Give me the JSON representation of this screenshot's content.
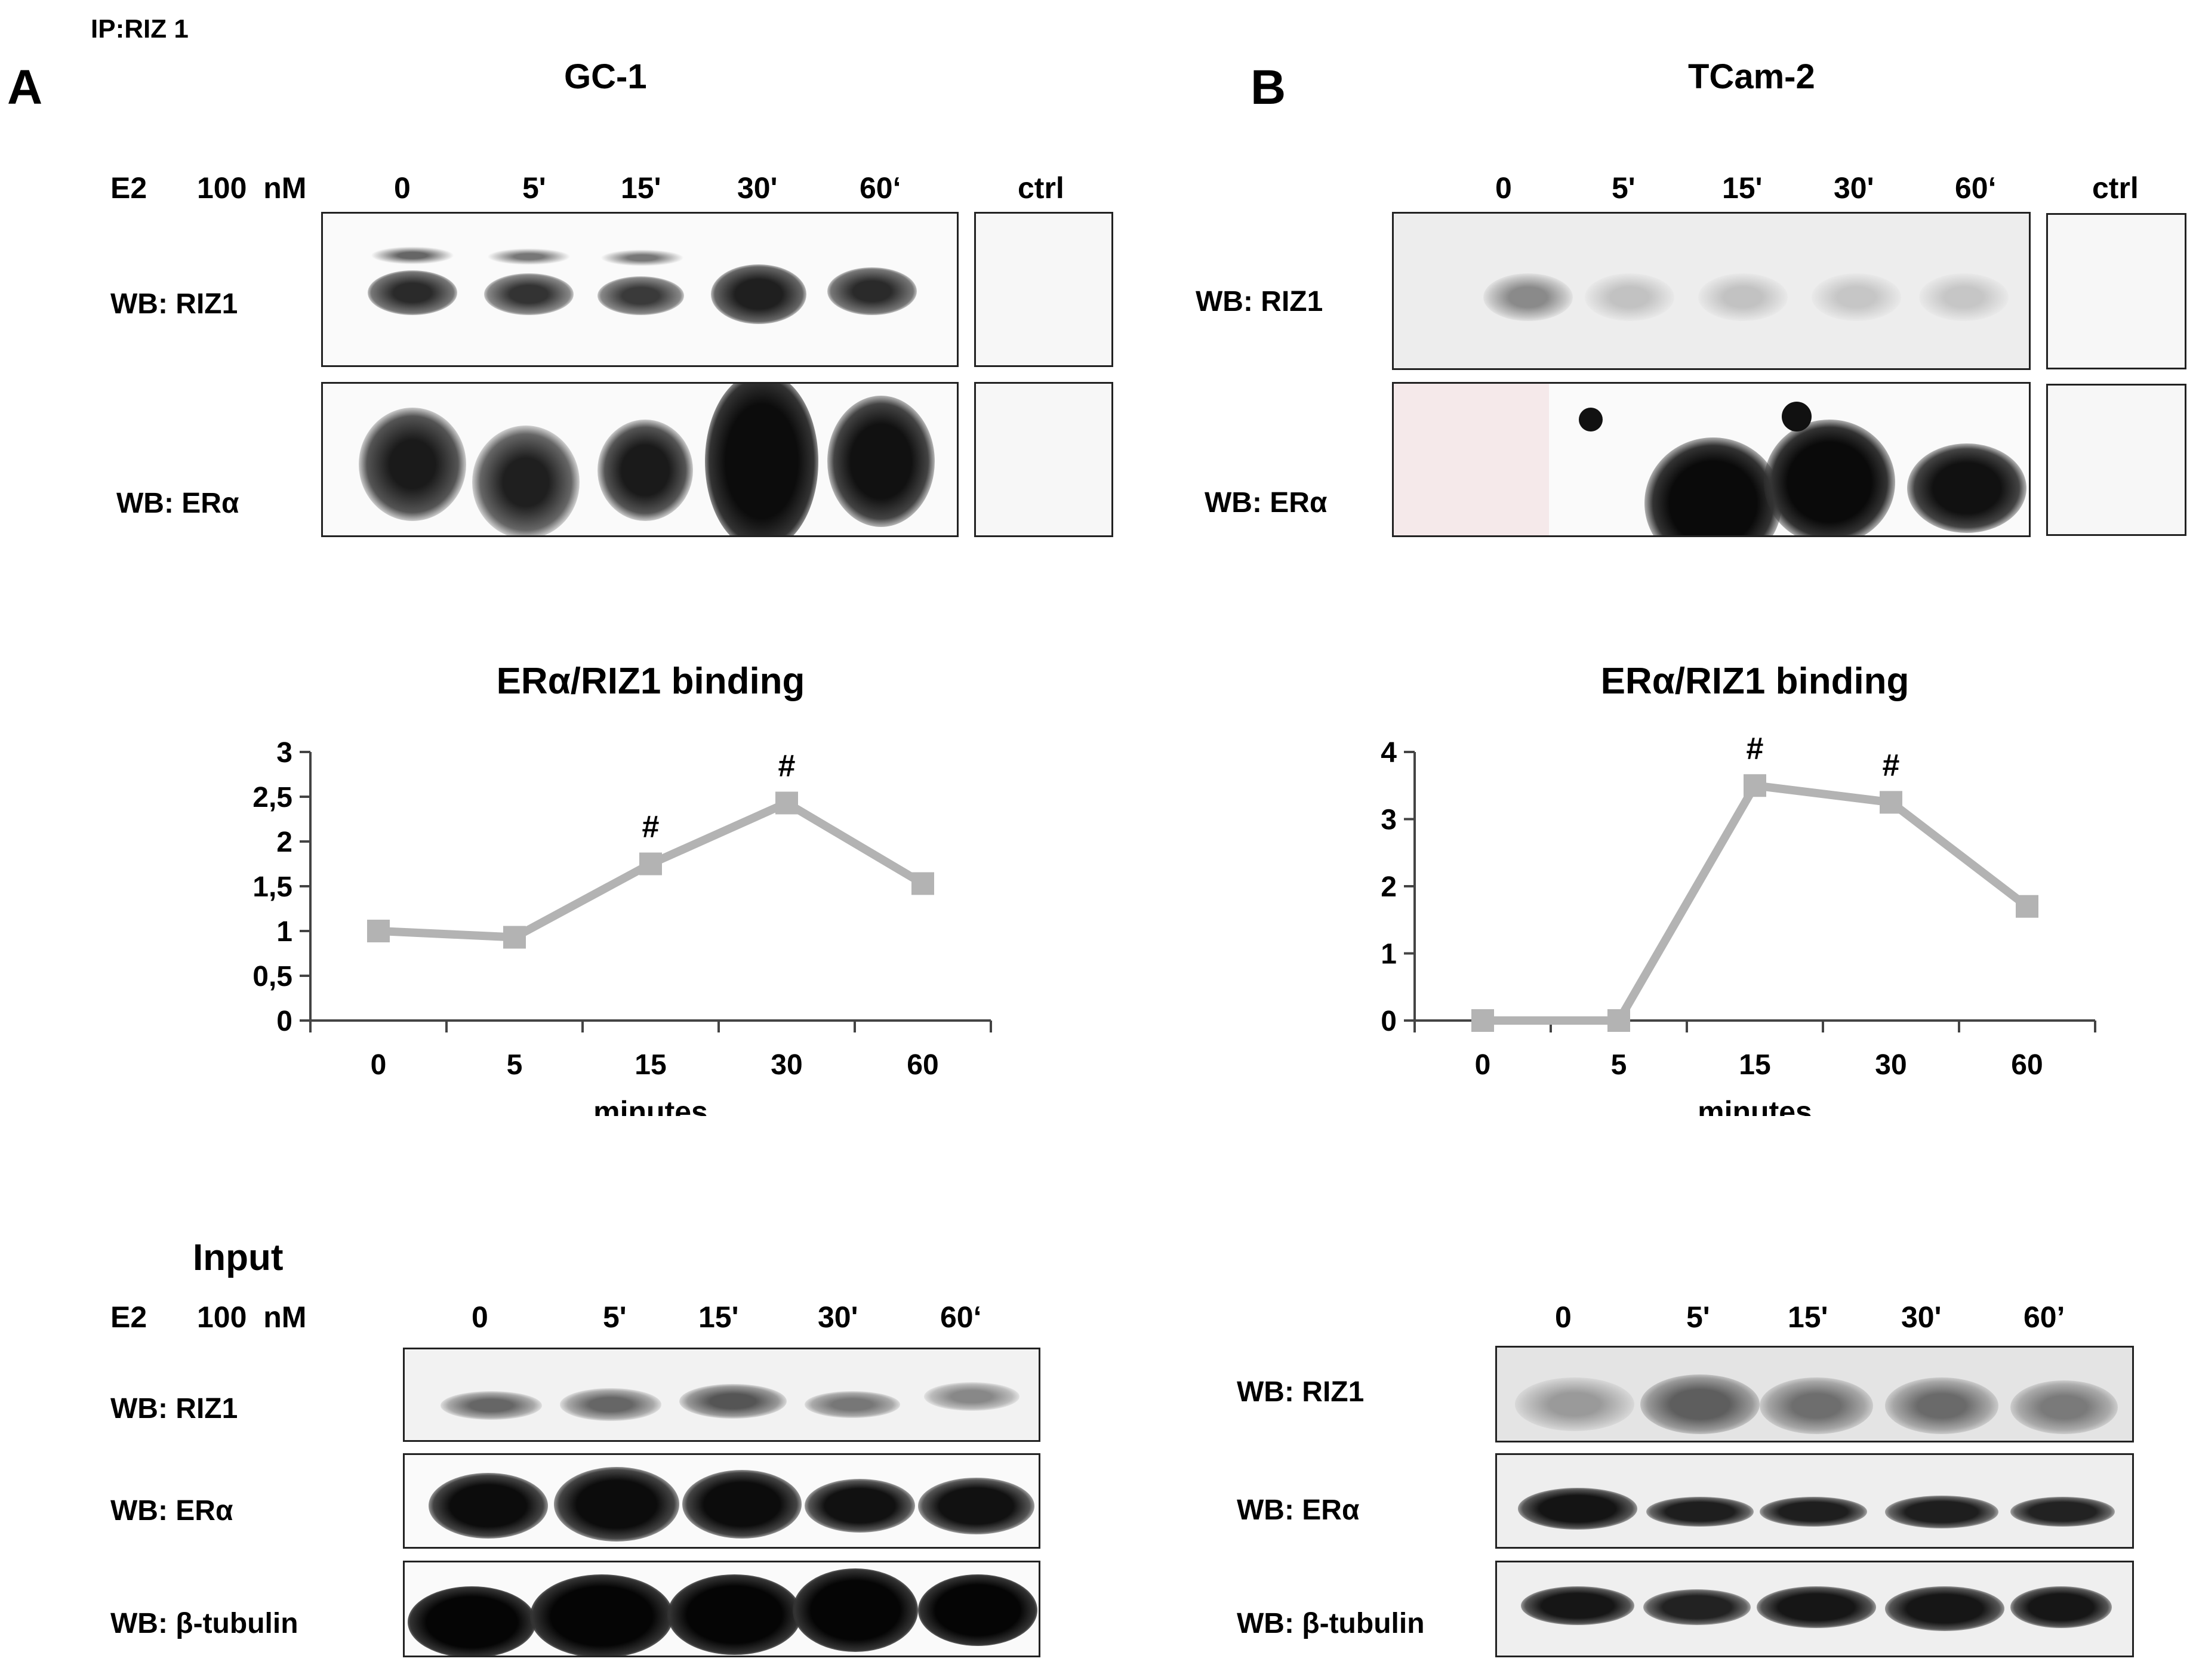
{
  "ip_label": "IP:RIZ 1",
  "panel_a": {
    "letter": "A",
    "cell_line": "GC-1",
    "treatment": "E2",
    "dose": "100  nM",
    "lanes": [
      "0",
      "5'",
      "15'",
      "30'",
      "60‘"
    ],
    "ctrl": "ctrl",
    "rows": [
      "WB: RIZ1",
      "WB: ERα"
    ],
    "input_title": "Input",
    "input_lanes": [
      "0",
      "5'",
      "15'",
      "30'",
      "60‘"
    ],
    "input_rows": [
      "WB: RIZ1",
      "WB: ERα",
      "WB: β-tubulin"
    ]
  },
  "panel_b": {
    "letter": "B",
    "cell_line": "TCam-2",
    "lanes": [
      "0",
      "5'",
      "15'",
      "30'",
      "60‘"
    ],
    "ctrl": "ctrl",
    "rows": [
      "WB: RIZ1",
      "WB: ERα"
    ],
    "input_lanes": [
      "0",
      "5'",
      "15'",
      "30'",
      "60’"
    ],
    "input_rows": [
      "WB: RIZ1",
      "WB: ERα",
      "WB: β-tubulin"
    ]
  },
  "chart_data": [
    {
      "type": "line",
      "title": "ERα/RIZ1 binding",
      "xlabel": "minutes",
      "ylabel": "",
      "categories": [
        "0",
        "5",
        "15",
        "30",
        "60"
      ],
      "values": [
        1.0,
        0.93,
        1.75,
        2.43,
        1.53
      ],
      "ylim": [
        0,
        3
      ],
      "yticks": [
        "0",
        "0,5",
        "1",
        "1,5",
        "2",
        "2,5",
        "3"
      ],
      "annotations": [
        "",
        "",
        "#",
        "#",
        ""
      ],
      "color": "#b3b3b3"
    },
    {
      "type": "line",
      "title": "ERα/RIZ1 binding",
      "xlabel": "minutes",
      "ylabel": "",
      "categories": [
        "0",
        "5",
        "15",
        "30",
        "60"
      ],
      "values": [
        0,
        0,
        3.5,
        3.25,
        1.7
      ],
      "ylim": [
        0,
        4
      ],
      "yticks": [
        "0",
        "1",
        "2",
        "3",
        "4"
      ],
      "annotations": [
        "",
        "",
        "#",
        "#",
        ""
      ],
      "color": "#b3b3b3"
    }
  ]
}
